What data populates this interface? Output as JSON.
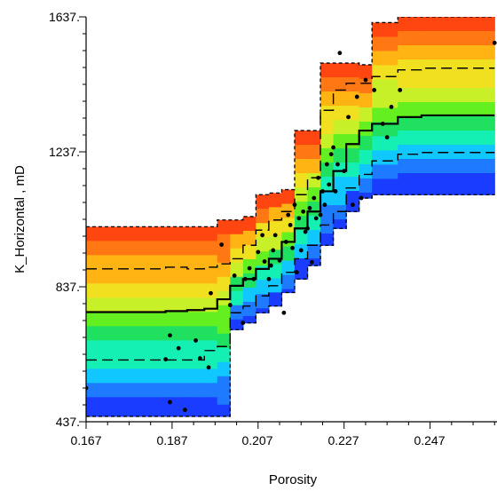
{
  "chart_data": {
    "type": "heatmap",
    "title": "",
    "xlabel": "Porosity",
    "ylabel": "K_Horizontal , mD",
    "xlim": [
      0.167,
      0.262
    ],
    "ylim": [
      437,
      1637
    ],
    "x_ticks": [
      "0.167",
      "0.187",
      "0.207",
      "0.227",
      "0.247"
    ],
    "y_ticks": [
      "1637.",
      "1237.",
      "837.",
      "437."
    ],
    "colormap": [
      "#1a3cff",
      "#1e7bff",
      "#10c8ff",
      "#14f0b4",
      "#20e060",
      "#64f020",
      "#c8f028",
      "#f0e020",
      "#ffb414",
      "#ff7814",
      "#ff4610"
    ],
    "color_scale_note": "colour bands show conditional distribution of K_Horizontal for each Porosity bin (blue = low, red = high)",
    "bins": [
      {
        "x0": 0.167,
        "x1": 0.1855,
        "p0": 453,
        "p10": 620,
        "p50": 762,
        "p90": 890,
        "p100": 1015
      },
      {
        "x0": 0.1855,
        "x1": 0.1905,
        "p0": 453,
        "p10": 620,
        "p50": 765,
        "p90": 895,
        "p100": 1015
      },
      {
        "x0": 0.1905,
        "x1": 0.1945,
        "p0": 453,
        "p10": 620,
        "p50": 768,
        "p90": 890,
        "p100": 1015
      },
      {
        "x0": 0.1945,
        "x1": 0.1975,
        "p0": 453,
        "p10": 648,
        "p50": 772,
        "p90": 895,
        "p100": 1015
      },
      {
        "x0": 0.1975,
        "x1": 0.2005,
        "p0": 453,
        "p10": 660,
        "p50": 800,
        "p90": 905,
        "p100": 1035
      },
      {
        "x0": 0.2005,
        "x1": 0.2035,
        "p0": 710,
        "p10": 760,
        "p50": 840,
        "p90": 920,
        "p100": 1035
      },
      {
        "x0": 0.2035,
        "x1": 0.2065,
        "p0": 730,
        "p10": 780,
        "p50": 860,
        "p90": 960,
        "p100": 1045
      },
      {
        "x0": 0.2065,
        "x1": 0.2095,
        "p0": 760,
        "p10": 810,
        "p50": 890,
        "p90": 1005,
        "p100": 1110
      },
      {
        "x0": 0.2095,
        "x1": 0.2125,
        "p0": 780,
        "p10": 840,
        "p50": 920,
        "p90": 1035,
        "p100": 1115
      },
      {
        "x0": 0.2125,
        "x1": 0.2155,
        "p0": 820,
        "p10": 880,
        "p50": 970,
        "p90": 1060,
        "p100": 1125
      },
      {
        "x0": 0.2155,
        "x1": 0.2185,
        "p0": 860,
        "p10": 920,
        "p50": 1010,
        "p90": 1110,
        "p100": 1300
      },
      {
        "x0": 0.2185,
        "x1": 0.2215,
        "p0": 900,
        "p10": 960,
        "p50": 1060,
        "p90": 1160,
        "p100": 1300
      },
      {
        "x0": 0.2215,
        "x1": 0.2245,
        "p0": 960,
        "p10": 1020,
        "p50": 1120,
        "p90": 1360,
        "p100": 1500
      },
      {
        "x0": 0.2245,
        "x1": 0.2275,
        "p0": 1010,
        "p10": 1060,
        "p50": 1180,
        "p90": 1420,
        "p100": 1500
      },
      {
        "x0": 0.2275,
        "x1": 0.2305,
        "p0": 1060,
        "p10": 1130,
        "p50": 1260,
        "p90": 1440,
        "p100": 1500
      },
      {
        "x0": 0.2305,
        "x1": 0.2335,
        "p0": 1100,
        "p10": 1170,
        "p50": 1300,
        "p90": 1440,
        "p100": 1495
      },
      {
        "x0": 0.2335,
        "x1": 0.2395,
        "p0": 1110,
        "p10": 1210,
        "p50": 1320,
        "p90": 1460,
        "p100": 1620
      },
      {
        "x0": 0.2395,
        "x1": 0.245,
        "p0": 1110,
        "p10": 1230,
        "p50": 1340,
        "p90": 1480,
        "p100": 1637
      },
      {
        "x0": 0.245,
        "x1": 0.262,
        "p0": 1110,
        "p10": 1235,
        "p50": 1345,
        "p90": 1485,
        "p100": 1637
      }
    ],
    "points": [
      [
        0.167,
        537
      ],
      [
        0.1855,
        622
      ],
      [
        0.1865,
        693
      ],
      [
        0.1865,
        495
      ],
      [
        0.1885,
        655
      ],
      [
        0.19,
        472
      ],
      [
        0.1925,
        678
      ],
      [
        0.1935,
        625
      ],
      [
        0.1955,
        598
      ],
      [
        0.196,
        818
      ],
      [
        0.1985,
        962
      ],
      [
        0.2005,
        783
      ],
      [
        0.2015,
        870
      ],
      [
        0.2035,
        730
      ],
      [
        0.204,
        860
      ],
      [
        0.205,
        892
      ],
      [
        0.206,
        860
      ],
      [
        0.207,
        940
      ],
      [
        0.208,
        990
      ],
      [
        0.2085,
        912
      ],
      [
        0.2095,
        860
      ],
      [
        0.21,
        900
      ],
      [
        0.2105,
        945
      ],
      [
        0.211,
        990
      ],
      [
        0.212,
        915
      ],
      [
        0.213,
        760
      ],
      [
        0.2135,
        970
      ],
      [
        0.214,
        1050
      ],
      [
        0.2145,
        1020
      ],
      [
        0.215,
        952
      ],
      [
        0.2155,
        1080
      ],
      [
        0.216,
        880
      ],
      [
        0.2165,
        1040
      ],
      [
        0.217,
        945
      ],
      [
        0.2175,
        1060
      ],
      [
        0.218,
        1000
      ],
      [
        0.2185,
        1010
      ],
      [
        0.219,
        1070
      ],
      [
        0.2195,
        910
      ],
      [
        0.22,
        1100
      ],
      [
        0.2205,
        1040
      ],
      [
        0.221,
        1160
      ],
      [
        0.2215,
        1050
      ],
      [
        0.222,
        1120
      ],
      [
        0.2225,
        1080
      ],
      [
        0.223,
        1200
      ],
      [
        0.2235,
        1140
      ],
      [
        0.224,
        1230
      ],
      [
        0.2245,
        1250
      ],
      [
        0.225,
        1120
      ],
      [
        0.2255,
        1200
      ],
      [
        0.226,
        1530
      ],
      [
        0.227,
        1180
      ],
      [
        0.228,
        1340
      ],
      [
        0.229,
        1080
      ],
      [
        0.23,
        1400
      ],
      [
        0.231,
        1100
      ],
      [
        0.232,
        1450
      ],
      [
        0.234,
        1420
      ],
      [
        0.236,
        1320
      ],
      [
        0.237,
        1280
      ],
      [
        0.238,
        1370
      ],
      [
        0.24,
        1420
      ],
      [
        0.252,
        1646
      ],
      [
        0.262,
        1560
      ]
    ]
  }
}
